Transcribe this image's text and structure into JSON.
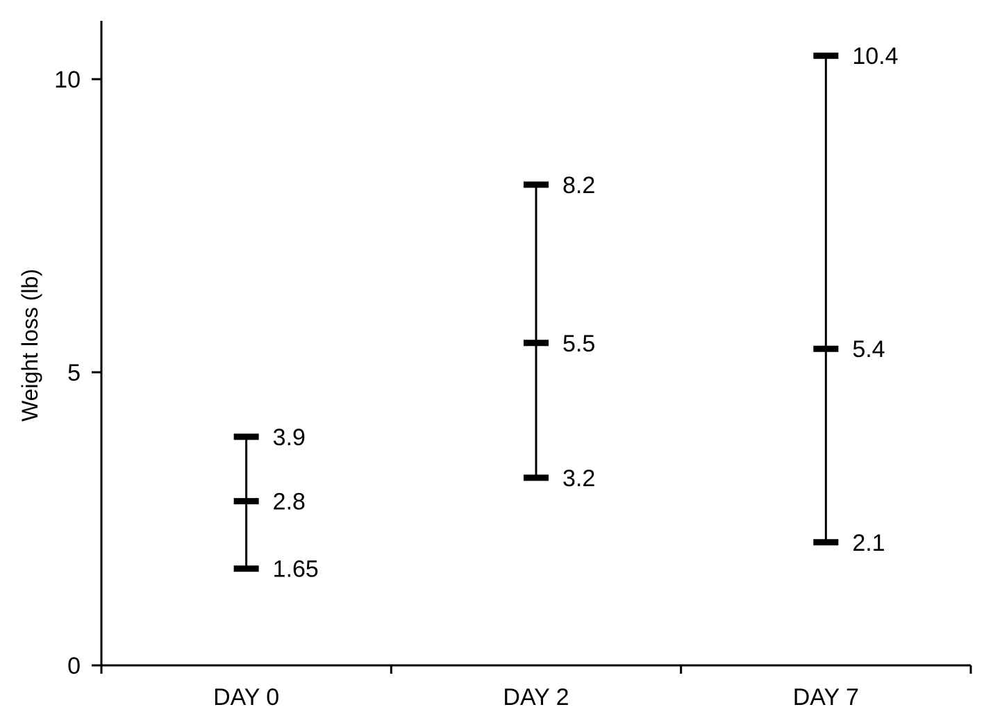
{
  "chart_data": {
    "type": "range",
    "title": "",
    "xlabel": "",
    "ylabel": "Weight loss (lb)",
    "ylim": [
      0,
      11
    ],
    "yticks": [
      0,
      5,
      10
    ],
    "grid": false,
    "legend": "none",
    "categories": [
      "DAY 0",
      "DAY 2",
      "DAY 7"
    ],
    "series": [
      {
        "low": [
          1.65,
          3.2,
          2.1
        ],
        "mid": [
          2.8,
          5.5,
          5.4
        ],
        "high": [
          3.9,
          8.2,
          10.4
        ]
      }
    ],
    "point_labels": [
      {
        "low": "1.65",
        "mid": "2.8",
        "high": "3.9"
      },
      {
        "low": "3.2",
        "mid": "5.5",
        "high": "8.2"
      },
      {
        "low": "2.1",
        "mid": "5.4",
        "high": "10.4"
      }
    ],
    "line_color": "#000000"
  }
}
